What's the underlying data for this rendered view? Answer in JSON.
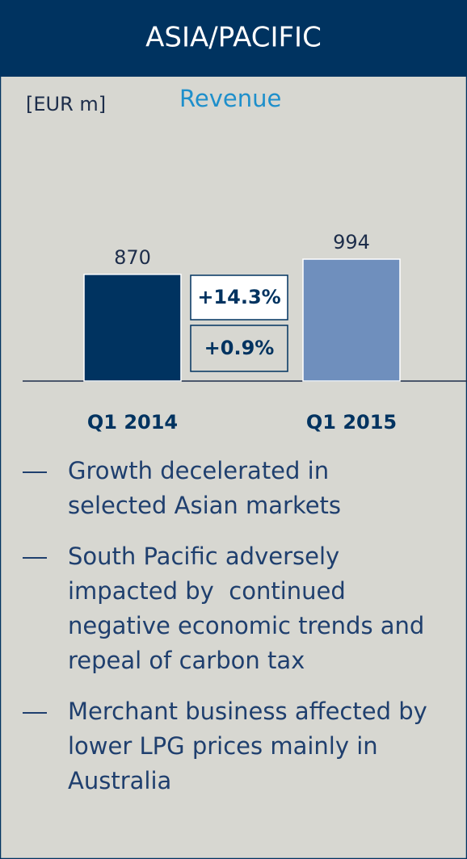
{
  "header": "ASIA/PACIFIC",
  "chart_data": {
    "type": "bar",
    "title": "Revenue",
    "unit": "[EUR m]",
    "categories": [
      "Q1 2014",
      "Q1 2015"
    ],
    "values": [
      870,
      994
    ],
    "colors": [
      "#003360",
      "#6f8fbd"
    ],
    "annotations": [
      "+14.3%",
      "+0.9%"
    ]
  },
  "bullets": [
    [
      "Growth decelerated in",
      "selected Asian markets"
    ],
    [
      "South Pacific adversely",
      "impacted by  continued",
      "negative economic trends and",
      "repeal of carbon tax"
    ],
    [
      "Merchant business affected by",
      "lower LPG prices mainly in",
      "Australia"
    ]
  ]
}
